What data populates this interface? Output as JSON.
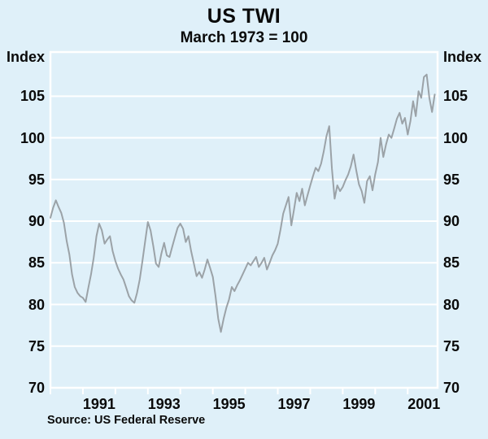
{
  "header": {
    "title": "US TWI",
    "subtitle": "March 1973 = 100"
  },
  "source": {
    "text": "Source: US Federal Reserve"
  },
  "chart_data": {
    "type": "line",
    "title": "US TWI",
    "subtitle": "March 1973 = 100",
    "y_unit": "Index",
    "ylim": [
      70,
      110.3
    ],
    "xlim": [
      1990.0,
      2001.92
    ],
    "yticks": [
      70,
      75,
      80,
      85,
      90,
      95,
      100,
      105
    ],
    "xtick_years": [
      1990,
      1991,
      1992,
      1993,
      1994,
      1995,
      1996,
      1997,
      1998,
      1999,
      2000,
      2001
    ],
    "x_axis_labels": [
      1991,
      1993,
      1995,
      1997,
      1999,
      2001
    ],
    "grid": true,
    "legend": "none",
    "source": "Source: US Federal Reserve",
    "colors": {
      "background": "#dff0f9",
      "grid": "#ffffff",
      "line": "#9ba2a7",
      "text": "#0a0a0a"
    },
    "series": [
      {
        "name": "US TWI (March 1973 = 100)",
        "x_start": 1990.0,
        "x_step": 0.0833333,
        "values": [
          90.4,
          91.6,
          92.5,
          91.7,
          91.0,
          89.8,
          87.6,
          86.0,
          83.6,
          82.1,
          81.4,
          81.0,
          80.8,
          80.3,
          82.0,
          83.6,
          85.6,
          88.2,
          89.7,
          88.9,
          87.3,
          87.8,
          88.2,
          86.4,
          85.2,
          84.3,
          83.6,
          83.0,
          82.0,
          81.0,
          80.5,
          80.2,
          81.4,
          83.0,
          85.2,
          87.6,
          89.9,
          88.9,
          87.0,
          84.9,
          84.5,
          86.1,
          87.4,
          85.9,
          85.7,
          86.9,
          88.1,
          89.2,
          89.7,
          89.1,
          87.5,
          88.2,
          86.4,
          84.9,
          83.4,
          83.9,
          83.2,
          84.2,
          85.4,
          84.4,
          83.3,
          81.0,
          78.3,
          76.7,
          78.3,
          79.6,
          80.6,
          82.1,
          81.6,
          82.3,
          82.9,
          83.6,
          84.3,
          85.0,
          84.7,
          85.2,
          85.7,
          84.5,
          85.0,
          85.6,
          84.2,
          85.0,
          85.9,
          86.5,
          87.3,
          89.0,
          90.9,
          91.9,
          92.9,
          89.5,
          91.4,
          93.4,
          92.4,
          93.9,
          91.9,
          93.1,
          94.3,
          95.4,
          96.4,
          96.0,
          96.9,
          98.4,
          100.2,
          101.4,
          96.3,
          92.7,
          94.3,
          93.6,
          94.1,
          94.9,
          95.6,
          96.6,
          98.0,
          96.1,
          94.4,
          93.6,
          92.2,
          94.8,
          95.4,
          93.7,
          95.6,
          97.1,
          100.0,
          97.7,
          99.2,
          100.4,
          100.0,
          101.1,
          102.3,
          103.0,
          101.7,
          102.4,
          100.4,
          102.0,
          104.4,
          102.6,
          105.6,
          104.8,
          107.3,
          107.6,
          104.8,
          103.1,
          105.2
        ]
      }
    ]
  }
}
